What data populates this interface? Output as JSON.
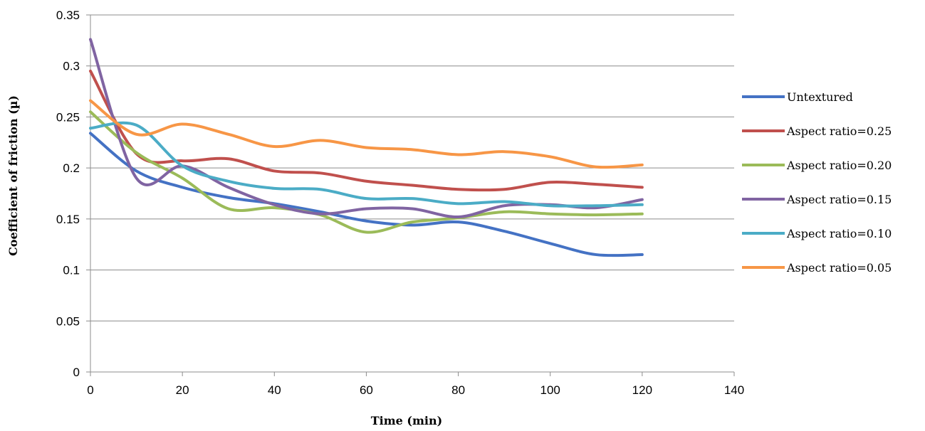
{
  "chart_data": {
    "type": "line",
    "title": "",
    "xlabel": "Time (min)",
    "ylabel": "Coefficient of friction (µ)",
    "xlim": [
      0,
      140
    ],
    "ylim": [
      0,
      0.35
    ],
    "xticks": [
      "0",
      "20",
      "40",
      "60",
      "80",
      "100",
      "120",
      "140"
    ],
    "yticks": [
      "0",
      "0.05",
      "0.1",
      "0.15",
      "0.2",
      "0.25",
      "0.3",
      "0.35"
    ],
    "grid": true,
    "legend_position": "right",
    "x": [
      0,
      10,
      20,
      30,
      40,
      50,
      60,
      70,
      80,
      90,
      100,
      110,
      120
    ],
    "series": [
      {
        "name": "Untextured",
        "color": "#4472C4",
        "values": [
          0.234,
          0.197,
          0.181,
          0.171,
          0.165,
          0.157,
          0.148,
          0.144,
          0.147,
          0.138,
          0.126,
          0.115,
          0.115
        ]
      },
      {
        "name": "Aspect ratio=0.25",
        "color": "#C0504D",
        "values": [
          0.295,
          0.214,
          0.207,
          0.209,
          0.197,
          0.195,
          0.187,
          0.183,
          0.179,
          0.179,
          0.186,
          0.184,
          0.181
        ]
      },
      {
        "name": "Aspect ratio=0.20",
        "color": "#9BBB59",
        "values": [
          0.255,
          0.215,
          0.19,
          0.16,
          0.161,
          0.154,
          0.137,
          0.147,
          0.151,
          0.157,
          0.155,
          0.154,
          0.155
        ]
      },
      {
        "name": "Aspect ratio=0.15",
        "color": "#8064A2",
        "values": [
          0.326,
          0.19,
          0.202,
          0.181,
          0.164,
          0.155,
          0.16,
          0.16,
          0.152,
          0.163,
          0.164,
          0.161,
          0.169
        ]
      },
      {
        "name": "Aspect ratio=0.10",
        "color": "#4BACC6",
        "values": [
          0.239,
          0.242,
          0.202,
          0.187,
          0.18,
          0.179,
          0.17,
          0.17,
          0.165,
          0.167,
          0.163,
          0.163,
          0.164
        ]
      },
      {
        "name": "Aspect ratio=0.05",
        "color": "#F79646",
        "values": [
          0.266,
          0.233,
          0.243,
          0.233,
          0.221,
          0.227,
          0.22,
          0.218,
          0.213,
          0.216,
          0.211,
          0.201,
          0.203
        ]
      }
    ]
  }
}
